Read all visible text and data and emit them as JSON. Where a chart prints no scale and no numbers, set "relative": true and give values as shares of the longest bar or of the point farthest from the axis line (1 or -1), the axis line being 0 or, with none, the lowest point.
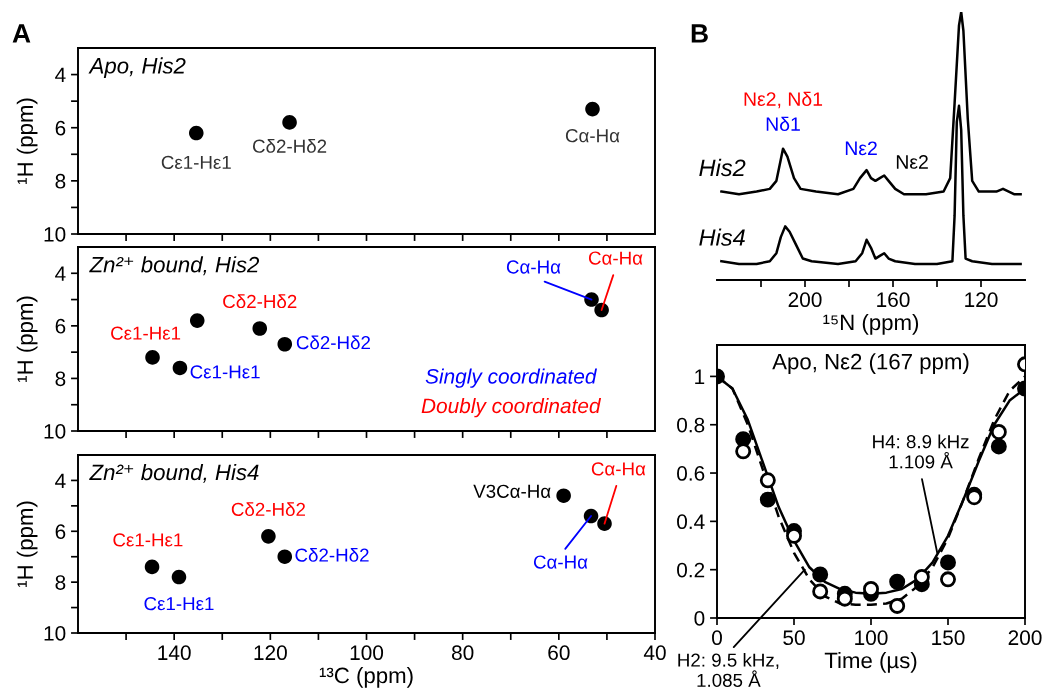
{
  "chart_data": [
    {
      "type": "scatter",
      "title": "Apo, His2",
      "ylabel": "¹H (ppm)",
      "xlim": [
        160,
        40
      ],
      "ylim": [
        10,
        3
      ],
      "tick_labels": "y",
      "xticks": [
        {
          "value": 150,
          "label": null
        },
        {
          "value": 140,
          "label": null
        },
        {
          "value": 130,
          "label": null
        },
        {
          "value": 120,
          "label": null
        },
        {
          "value": 110,
          "label": null
        },
        {
          "value": 100,
          "label": null
        },
        {
          "value": 90,
          "label": null
        },
        {
          "value": 80,
          "label": null
        },
        {
          "value": 70,
          "label": null
        },
        {
          "value": 60,
          "label": null
        },
        {
          "value": 50,
          "label": null
        }
      ],
      "yticks": [
        4,
        {
          "value": 5,
          "label": null
        },
        6,
        {
          "value": 7,
          "label": null
        },
        8,
        {
          "value": 9,
          "label": null
        },
        10
      ],
      "series": [
        {
          "color": "#000000",
          "x": [
            135.4,
            116.0,
            53.0
          ],
          "values": [
            6.2,
            5.8,
            5.3
          ]
        }
      ],
      "annotations": [
        "A",
        {
          "text": "Cε1-Hε1",
          "x": 135.4,
          "y": 6.2
        },
        {
          "text": "Cδ2-Hδ2",
          "x": 116.0,
          "y": 5.8
        },
        {
          "text": "Cα-Hα",
          "x": 53.0,
          "y": 5.3
        }
      ]
    },
    {
      "type": "scatter",
      "title": "Zn²⁺ bound, His2",
      "ylabel": "¹H (ppm)",
      "xlim": [
        160,
        40
      ],
      "ylim": [
        10,
        3
      ],
      "tick_labels": "y",
      "xticks": [
        {
          "value": 150,
          "label": null
        },
        {
          "value": 140,
          "label": null
        },
        {
          "value": 130,
          "label": null
        },
        {
          "value": 120,
          "label": null
        },
        {
          "value": 110,
          "label": null
        },
        {
          "value": 100,
          "label": null
        },
        {
          "value": 90,
          "label": null
        },
        {
          "value": 80,
          "label": null
        },
        {
          "value": 70,
          "label": null
        },
        {
          "value": 60,
          "label": null
        },
        {
          "value": 50,
          "label": null
        }
      ],
      "yticks": [
        4,
        {
          "value": 5,
          "label": null
        },
        6,
        {
          "value": 7,
          "label": null
        },
        8,
        {
          "value": 9,
          "label": null
        },
        10
      ],
      "series": [
        {
          "color": "#000000",
          "x": [
            144.5,
            138.8,
            135.2,
            122.2,
            117.0,
            53.2,
            51.1
          ],
          "values": [
            7.2,
            7.6,
            5.8,
            6.1,
            6.7,
            5.0,
            5.4
          ]
        }
      ],
      "annotations": [
        {
          "text": "Cε1-Hε1",
          "x": 144.5,
          "y": 7.2
        },
        {
          "text": "Cε1-Hε1",
          "x": 138.8,
          "y": 7.6
        },
        {
          "text": "Cδ2-Hδ2",
          "x": 122.2,
          "y": 6.1
        },
        {
          "text": "Cδ2-Hδ2",
          "x": 117.0,
          "y": 6.7
        },
        {
          "text": "Cα-Hα",
          "x": 53.2,
          "y": 5.0
        },
        {
          "text": "Cα-Hα",
          "x": 51.1,
          "y": 5.4
        },
        "Singly coordinated",
        "Doubly coordinated"
      ]
    },
    {
      "type": "scatter",
      "title": "Zn²⁺ bound, His4",
      "ylabel": "¹H (ppm)",
      "xlabel": "¹³C (ppm)",
      "xlim": [
        160,
        40
      ],
      "ylim": [
        10,
        3
      ],
      "xticks": [
        {
          "value": 150,
          "label": null
        },
        140,
        {
          "value": 130,
          "label": null
        },
        120,
        {
          "value": 110,
          "label": null
        },
        100,
        {
          "value": 90,
          "label": null
        },
        80,
        {
          "value": 70,
          "label": null
        },
        60,
        {
          "value": 50,
          "label": null
        },
        40
      ],
      "yticks": [
        4,
        {
          "value": 5,
          "label": null
        },
        6,
        {
          "value": 7,
          "label": null
        },
        8,
        {
          "value": 9,
          "label": null
        },
        10
      ],
      "series": [
        {
          "color": "#000000",
          "x": [
            144.6,
            139.0,
            120.4,
            117.0,
            59.0,
            53.3,
            50.5
          ],
          "values": [
            7.4,
            7.8,
            6.2,
            7.0,
            4.6,
            5.4,
            5.7
          ]
        }
      ],
      "annotations": [
        {
          "text": "Cε1-Hε1",
          "x": 144.6,
          "y": 7.4
        },
        {
          "text": "Cε1-Hε1",
          "x": 139.0,
          "y": 7.8
        },
        {
          "text": "Cδ2-Hδ2",
          "x": 120.4,
          "y": 6.2
        },
        {
          "text": "Cδ2-Hδ2",
          "x": 117.0,
          "y": 7.0
        },
        {
          "text": "V3Cα-Hα",
          "x": 59.0,
          "y": 4.6
        },
        {
          "text": "Cα-Hα",
          "x": 53.3,
          "y": 5.4
        },
        {
          "text": "Cα-Hα",
          "x": 50.5,
          "y": 5.7
        }
      ]
    },
    {
      "type": "line",
      "relative": true,
      "tick_labels": "x",
      "xlim": [
        240,
        100
      ],
      "xlabel": "¹⁵N (ppm)",
      "xticks": [
        {
          "value": 220,
          "label": null
        },
        200,
        {
          "value": 180,
          "label": null
        },
        160,
        {
          "value": 140,
          "label": null
        },
        120
      ],
      "series": [
        {
          "name": "His4",
          "color": "#000000",
          "x": [
            238,
            230,
            222,
            216,
            213,
            211,
            209,
            207,
            204,
            201,
            197,
            185,
            177,
            174,
            172,
            170,
            168,
            166,
            164,
            162,
            159,
            150,
            140,
            133,
            132,
            131,
            130,
            129,
            128,
            127,
            124,
            115,
            102
          ],
          "values": [
            0.07,
            0.06,
            0.06,
            0.07,
            0.1,
            0.16,
            0.2,
            0.18,
            0.13,
            0.08,
            0.07,
            0.06,
            0.07,
            0.1,
            0.15,
            0.12,
            0.08,
            0.09,
            0.1,
            0.08,
            0.07,
            0.06,
            0.06,
            0.07,
            0.24,
            0.59,
            0.65,
            0.56,
            0.24,
            0.08,
            0.07,
            0.06,
            0.06
          ]
        },
        {
          "name": "His2",
          "color": "#000000",
          "x": [
            238,
            230,
            222,
            216,
            213,
            211,
            210,
            208,
            205,
            202,
            195,
            185,
            178,
            175,
            172,
            170,
            168,
            166,
            164,
            162,
            159,
            155,
            145,
            137,
            134,
            132,
            130,
            129,
            128,
            126,
            124,
            121,
            113,
            110,
            105,
            102
          ],
          "values": [
            0.33,
            0.32,
            0.33,
            0.34,
            0.37,
            0.45,
            0.49,
            0.46,
            0.38,
            0.34,
            0.33,
            0.32,
            0.34,
            0.38,
            0.41,
            0.38,
            0.37,
            0.38,
            0.39,
            0.37,
            0.34,
            0.32,
            0.32,
            0.33,
            0.38,
            0.66,
            0.95,
            1.0,
            0.93,
            0.6,
            0.37,
            0.33,
            0.33,
            0.34,
            0.32,
            0.32
          ]
        }
      ],
      "annotations": [
        "B",
        {
          "text": "Nε2, Nδ1",
          "x": 210,
          "y": 0.49
        },
        {
          "text": "Nδ1",
          "x": 210,
          "y": 0.49
        },
        {
          "text": "Nε2",
          "x": 172,
          "y": 0.41
        },
        {
          "text": "Nε2",
          "x": 164,
          "y": 0.39
        }
      ]
    },
    {
      "type": "line",
      "title": "Apo, Nε2 (167 ppm)",
      "xlabel": "Time (µs)",
      "xlim": [
        0,
        200
      ],
      "ylim": [
        0,
        1.13
      ],
      "xticks": [
        0,
        50,
        100,
        150,
        200
      ],
      "yticks": [
        0,
        0.2,
        0.4,
        0.6,
        0.8,
        1
      ],
      "series": [
        {
          "type": "line",
          "color": "#000000",
          "line_style": "solid",
          "x": [
            0,
            10,
            20,
            30,
            40,
            50,
            60,
            70,
            80,
            90,
            100,
            110,
            120,
            130,
            140,
            150,
            160,
            170,
            180,
            190,
            200
          ],
          "values": [
            1.0,
            0.95,
            0.82,
            0.64,
            0.46,
            0.32,
            0.21,
            0.15,
            0.12,
            0.105,
            0.1,
            0.105,
            0.12,
            0.16,
            0.23,
            0.34,
            0.49,
            0.65,
            0.8,
            0.9,
            0.95
          ]
        },
        {
          "type": "line",
          "color": "#000000",
          "line_style": "dashed",
          "x": [
            0,
            10,
            20,
            30,
            40,
            50,
            60,
            70,
            80,
            90,
            100,
            110,
            120,
            130,
            140,
            150,
            160,
            170,
            180,
            190,
            200
          ],
          "values": [
            1.0,
            0.95,
            0.8,
            0.61,
            0.42,
            0.27,
            0.16,
            0.09,
            0.06,
            0.055,
            0.055,
            0.06,
            0.08,
            0.13,
            0.21,
            0.33,
            0.49,
            0.66,
            0.82,
            0.94,
            1.0
          ]
        },
        {
          "type": "scatter",
          "color": "#000000",
          "marker": "circle",
          "x": [
            0,
            17,
            33,
            50,
            67,
            83,
            100,
            117,
            133,
            150,
            167,
            183,
            200
          ],
          "values": [
            1.0,
            0.74,
            0.49,
            0.36,
            0.18,
            0.1,
            0.1,
            0.15,
            0.14,
            0.23,
            0.51,
            0.71,
            0.95
          ]
        },
        {
          "type": "scatter",
          "color": "#000000",
          "marker": "circle",
          "colors": [
            "#ffffff",
            "#ffffff",
            "#ffffff",
            "#ffffff",
            "#ffffff",
            "#ffffff",
            "#ffffff",
            "#ffffff",
            "#ffffff",
            "#ffffff",
            "#ffffff",
            "#ffffff"
          ],
          "x": [
            17,
            33,
            50,
            67,
            83,
            100,
            117,
            133,
            150,
            167,
            183,
            200
          ],
          "values": [
            0.69,
            0.57,
            0.34,
            0.11,
            0.08,
            0.12,
            0.05,
            0.17,
            0.16,
            0.5,
            0.77,
            1.05
          ]
        }
      ],
      "annotations": [
        {
          "text": "H4: 8.9 kHz\n1.109 Å",
          "x": 143,
          "y": 0.27
        },
        {
          "text": "H2: 9.5 kHz,\n1.085 Å",
          "x": 57,
          "y": 0.2
        }
      ]
    }
  ]
}
